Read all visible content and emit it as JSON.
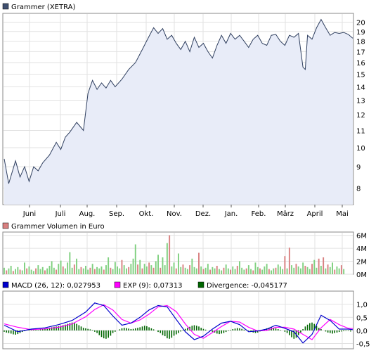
{
  "colors": {
    "price_line": "#2f3f5f",
    "price_fill": "#e8ecf8",
    "volume_up": "#7fd07f",
    "volume_down": "#d88080",
    "macd": "#0000cc",
    "exp": "#ff00ff",
    "divergence": "#006600",
    "grid": "#e2e2e2"
  },
  "chart_data": [
    {
      "type": "area",
      "title": "Grammer (XETRA)",
      "legend_color": "#3f4f6f",
      "months": [
        "Juni",
        "Juli",
        "Aug.",
        "Sep.",
        "Okt.",
        "Nov.",
        "Dez.",
        "Jan.",
        "Feb.",
        "März",
        "April",
        "Mai"
      ],
      "y_ticks": [
        "20",
        "19",
        "18",
        "17",
        "16",
        "15",
        "14",
        "13",
        "12",
        "11",
        "10",
        "9",
        "8"
      ],
      "y_scale": "log",
      "ylim": [
        7.3,
        21.0
      ],
      "series": [
        {
          "name": "Grammer (XETRA)",
          "points": [
            [
              0,
              9.4
            ],
            [
              2,
              8.2
            ],
            [
              5,
              9.3
            ],
            [
              7,
              8.5
            ],
            [
              9,
              9.0
            ],
            [
              11,
              8.3
            ],
            [
              13,
              9.0
            ],
            [
              15,
              8.8
            ],
            [
              17,
              9.2
            ],
            [
              20,
              9.6
            ],
            [
              23,
              10.3
            ],
            [
              25,
              9.9
            ],
            [
              27,
              10.6
            ],
            [
              29,
              10.9
            ],
            [
              32,
              11.5
            ],
            [
              35,
              11.0
            ],
            [
              37,
              13.5
            ],
            [
              39,
              14.5
            ],
            [
              41,
              13.8
            ],
            [
              43,
              14.3
            ],
            [
              45,
              13.9
            ],
            [
              47,
              14.5
            ],
            [
              49,
              14.0
            ],
            [
              52,
              14.6
            ],
            [
              55,
              15.4
            ],
            [
              58,
              16.0
            ],
            [
              61,
              17.2
            ],
            [
              64,
              18.5
            ],
            [
              66,
              19.4
            ],
            [
              68,
              18.8
            ],
            [
              70,
              19.3
            ],
            [
              72,
              18.2
            ],
            [
              74,
              18.6
            ],
            [
              76,
              17.8
            ],
            [
              78,
              17.2
            ],
            [
              80,
              18.0
            ],
            [
              82,
              17.0
            ],
            [
              84,
              18.4
            ],
            [
              86,
              17.4
            ],
            [
              88,
              17.8
            ],
            [
              90,
              17.0
            ],
            [
              92,
              16.4
            ],
            [
              94,
              17.6
            ],
            [
              96,
              18.6
            ],
            [
              98,
              17.8
            ],
            [
              100,
              18.8
            ],
            [
              102,
              18.2
            ],
            [
              104,
              18.6
            ],
            [
              106,
              18.0
            ],
            [
              108,
              17.4
            ],
            [
              110,
              18.2
            ],
            [
              112,
              18.6
            ],
            [
              114,
              17.8
            ],
            [
              116,
              17.6
            ],
            [
              118,
              18.6
            ],
            [
              120,
              18.7
            ],
            [
              122,
              18.0
            ],
            [
              124,
              17.6
            ],
            [
              126,
              18.6
            ],
            [
              128,
              18.4
            ],
            [
              130,
              18.8
            ],
            [
              132,
              15.6
            ],
            [
              133,
              15.4
            ],
            [
              134,
              18.6
            ],
            [
              136,
              18.2
            ],
            [
              138,
              19.4
            ],
            [
              140,
              20.3
            ],
            [
              142,
              19.4
            ],
            [
              144,
              18.6
            ],
            [
              146,
              18.9
            ],
            [
              148,
              18.8
            ],
            [
              150,
              18.9
            ],
            [
              152,
              18.7
            ],
            [
              154,
              18.3
            ]
          ]
        }
      ]
    },
    {
      "type": "bar",
      "title": "Grammer Volumen in Euro",
      "legend_color": "#d88080",
      "y_ticks": [
        "6M",
        "4M",
        "2M",
        "0M"
      ],
      "ylim": [
        0,
        6.5
      ],
      "unit": "M EUR",
      "series": [
        {
          "name": "Grammer Volumen in Euro",
          "values": [
            1.0,
            0.6,
            0.9,
            1.3,
            0.5,
            0.8,
            1.1,
            0.7,
            0.6,
            1.8,
            0.9,
            1.2,
            0.7,
            0.5,
            0.9,
            1.4,
            0.8,
            1.1,
            0.6,
            0.9,
            1.3,
            2.0,
            1.0,
            0.7,
            1.6,
            2.1,
            1.2,
            0.9,
            1.8,
            3.4,
            1.0,
            1.5,
            2.4,
            0.8,
            1.1,
            0.9,
            1.3,
            0.7,
            1.0,
            1.6,
            0.8,
            1.1,
            0.9,
            1.2,
            0.7,
            1.4,
            2.6,
            1.0,
            0.8,
            1.9,
            1.2,
            0.9,
            2.2,
            1.4,
            0.9,
            1.1,
            1.6,
            2.4,
            4.6,
            1.5,
            2.2,
            0.9,
            1.6,
            1.2,
            1.8,
            1.4,
            1.0,
            2.0,
            3.0,
            1.0,
            2.6,
            1.4,
            4.8,
            6.0,
            1.2,
            1.8,
            0.9,
            3.2,
            1.1,
            1.5,
            1.0,
            0.8,
            1.4,
            2.4,
            1.1,
            0.9,
            3.3,
            1.2,
            0.8,
            1.0,
            1.6,
            0.7,
            1.1,
            0.9,
            1.3,
            0.8,
            0.6,
            1.0,
            1.5,
            0.9,
            0.7,
            1.2,
            0.8,
            1.3,
            2.0,
            1.0,
            0.7,
            0.9,
            1.4,
            0.8,
            0.6,
            1.8,
            1.1,
            0.9,
            0.7,
            1.2,
            1.6,
            0.8,
            0.6,
            0.9,
            1.0,
            1.5,
            1.2,
            0.8,
            2.8,
            0.9,
            4.1,
            1.4,
            1.0,
            1.6,
            1.2,
            0.9,
            1.8,
            1.3,
            1.1,
            0.8,
            1.6,
            2.2,
            1.0,
            2.4,
            1.3,
            2.6,
            0.9,
            1.5,
            1.1,
            1.8,
            0.7,
            1.2,
            0.9,
            1.4,
            0.8
          ],
          "down_days": [
            1,
            4,
            7,
            10,
            14,
            18,
            23,
            26,
            31,
            34,
            38,
            40,
            44,
            47,
            52,
            55,
            59,
            61,
            64,
            66,
            69,
            73,
            76,
            79,
            82,
            86,
            88,
            91,
            94,
            97,
            100,
            103,
            107,
            110,
            113,
            117,
            120,
            124,
            126,
            129,
            133,
            136,
            139,
            141,
            143,
            146,
            149,
            152
          ]
        }
      ]
    },
    {
      "type": "line",
      "legend": [
        {
          "key": "macd",
          "label": "MACD (26, 12): 0,027953",
          "color": "#0000cc"
        },
        {
          "key": "exp",
          "label": "EXP (9): 0,07313",
          "color": "#ff00ff"
        },
        {
          "key": "divergence",
          "label": "Divergence: -0,045177",
          "color": "#006600"
        }
      ],
      "y_ticks": [
        "1,0",
        "0,5",
        "0,0",
        "-0,5"
      ],
      "ylim": [
        -0.7,
        1.5
      ],
      "series": [
        {
          "name": "MACD (26, 12)",
          "points": [
            [
              0,
              0.2
            ],
            [
              6,
              -0.05
            ],
            [
              12,
              0.05
            ],
            [
              18,
              0.1
            ],
            [
              24,
              0.22
            ],
            [
              30,
              0.38
            ],
            [
              36,
              0.7
            ],
            [
              40,
              1.05
            ],
            [
              44,
              0.95
            ],
            [
              48,
              0.55
            ],
            [
              52,
              0.2
            ],
            [
              56,
              0.28
            ],
            [
              60,
              0.5
            ],
            [
              64,
              0.78
            ],
            [
              68,
              0.95
            ],
            [
              72,
              0.9
            ],
            [
              76,
              0.42
            ],
            [
              80,
              -0.05
            ],
            [
              84,
              -0.35
            ],
            [
              88,
              -0.22
            ],
            [
              92,
              0.05
            ],
            [
              96,
              0.28
            ],
            [
              100,
              0.35
            ],
            [
              104,
              0.22
            ],
            [
              108,
              -0.05
            ],
            [
              112,
              -0.02
            ],
            [
              116,
              0.05
            ],
            [
              120,
              0.2
            ],
            [
              124,
              0.08
            ],
            [
              128,
              -0.05
            ],
            [
              132,
              -0.48
            ],
            [
              136,
              -0.15
            ],
            [
              140,
              0.58
            ],
            [
              144,
              0.38
            ],
            [
              148,
              0.05
            ],
            [
              152,
              0.05
            ],
            [
              154,
              0.03
            ]
          ]
        },
        {
          "name": "EXP (9)",
          "points": [
            [
              0,
              0.25
            ],
            [
              6,
              0.12
            ],
            [
              12,
              0.03
            ],
            [
              18,
              0.06
            ],
            [
              24,
              0.12
            ],
            [
              30,
              0.25
            ],
            [
              36,
              0.52
            ],
            [
              40,
              0.8
            ],
            [
              44,
              0.98
            ],
            [
              48,
              0.78
            ],
            [
              52,
              0.42
            ],
            [
              56,
              0.28
            ],
            [
              60,
              0.4
            ],
            [
              64,
              0.62
            ],
            [
              68,
              0.9
            ],
            [
              72,
              0.95
            ],
            [
              76,
              0.72
            ],
            [
              80,
              0.25
            ],
            [
              84,
              -0.15
            ],
            [
              88,
              -0.3
            ],
            [
              92,
              -0.08
            ],
            [
              96,
              0.15
            ],
            [
              100,
              0.35
            ],
            [
              104,
              0.32
            ],
            [
              108,
              0.12
            ],
            [
              112,
              -0.02
            ],
            [
              116,
              0.0
            ],
            [
              120,
              0.12
            ],
            [
              124,
              0.12
            ],
            [
              128,
              0.05
            ],
            [
              132,
              -0.15
            ],
            [
              136,
              -0.35
            ],
            [
              140,
              0.1
            ],
            [
              144,
              0.42
            ],
            [
              148,
              0.22
            ],
            [
              152,
              0.08
            ],
            [
              154,
              0.07
            ]
          ]
        },
        {
          "name": "Divergence",
          "values": [
            -0.05,
            -0.08,
            -0.1,
            -0.12,
            -0.15,
            -0.16,
            -0.14,
            -0.1,
            -0.06,
            -0.03,
            0.02,
            0.04,
            0.05,
            0.04,
            0.03,
            0.02,
            0.04,
            0.06,
            0.08,
            0.09,
            0.1,
            0.12,
            0.14,
            0.15,
            0.16,
            0.18,
            0.2,
            0.22,
            0.25,
            0.28,
            0.3,
            0.28,
            0.25,
            0.2,
            0.15,
            0.1,
            0.08,
            0.06,
            0.04,
            0.02,
            -0.05,
            -0.1,
            -0.18,
            -0.25,
            -0.3,
            -0.32,
            -0.28,
            -0.2,
            -0.1,
            -0.05,
            0.0,
            0.04,
            0.08,
            0.1,
            0.09,
            0.07,
            0.05,
            0.06,
            0.08,
            0.1,
            0.12,
            0.15,
            0.18,
            0.16,
            0.12,
            0.08,
            0.04,
            0.0,
            -0.06,
            -0.1,
            -0.18,
            -0.22,
            -0.3,
            -0.32,
            -0.28,
            -0.2,
            -0.15,
            -0.1,
            -0.04,
            0.02,
            0.06,
            0.1,
            0.14,
            0.18,
            0.2,
            0.18,
            0.15,
            0.1,
            0.06,
            0.03,
            0.0,
            -0.02,
            -0.05,
            -0.08,
            -0.12,
            -0.14,
            -0.12,
            -0.1,
            -0.06,
            -0.02,
            0.02,
            0.05,
            0.07,
            0.09,
            0.08,
            0.06,
            0.03,
            0.0,
            -0.02,
            -0.05,
            -0.08,
            -0.1,
            -0.08,
            -0.04,
            0.0,
            0.05,
            0.08,
            0.1,
            0.12,
            0.1,
            0.08,
            0.05,
            0.02,
            0.0,
            -0.05,
            -0.1,
            -0.18,
            -0.26,
            -0.32,
            -0.28,
            -0.18,
            -0.08,
            0.05,
            0.15,
            0.22,
            0.28,
            0.3,
            0.25,
            0.18,
            0.1,
            0.05,
            0.0,
            -0.04,
            -0.08,
            -0.1,
            -0.12,
            -0.1,
            -0.08,
            -0.06,
            -0.04,
            -0.03,
            -0.02,
            -0.02,
            -0.04
          ]
        }
      ]
    }
  ]
}
